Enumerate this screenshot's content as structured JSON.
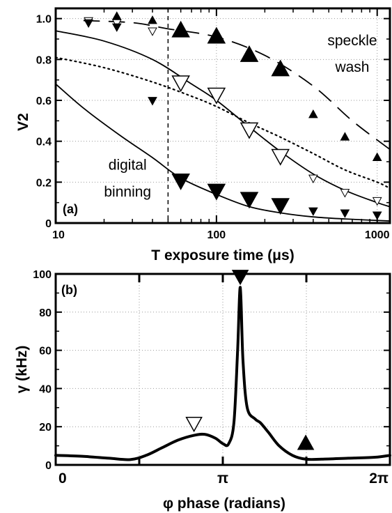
{
  "chart_data": [
    {
      "type": "scatter",
      "panel_label": "(a)",
      "xlabel": "T exposure time (μs)",
      "ylabel": "V2",
      "xscale": "log",
      "xlim": [
        10,
        1200
      ],
      "ylim": [
        0,
        1.05
      ],
      "x_ticks": [
        10,
        100,
        1000
      ],
      "x_tick_labels": [
        "10",
        "100",
        "1000"
      ],
      "y_ticks": [
        0,
        0.2,
        0.4,
        0.6,
        0.8,
        1.0
      ],
      "y_tick_labels": [
        "0",
        "0.2",
        "0.4",
        "0.6",
        "0.8",
        "1.0"
      ],
      "grid": true,
      "vline_x": 50,
      "annotations": [
        {
          "text": "speckle",
          "x": 700,
          "y": 0.87
        },
        {
          "text": "wash",
          "x": 700,
          "y": 0.74
        },
        {
          "text": "digital",
          "x": 28,
          "y": 0.26
        },
        {
          "text": "binning",
          "x": 28,
          "y": 0.13
        }
      ],
      "series": [
        {
          "marker": "up-filled-large",
          "points": [
            [
              60,
              0.94
            ],
            [
              100,
              0.91
            ],
            [
              160,
              0.82
            ],
            [
              250,
              0.75
            ]
          ]
        },
        {
          "marker": "up-filled-small",
          "points": [
            [
              24,
              1.01
            ],
            [
              40,
              0.99
            ],
            [
              400,
              0.53
            ],
            [
              630,
              0.42
            ],
            [
              1000,
              0.32
            ]
          ]
        },
        {
          "marker": "down-open-large",
          "points": [
            [
              60,
              0.69
            ],
            [
              100,
              0.63
            ],
            [
              160,
              0.46
            ],
            [
              250,
              0.33
            ]
          ]
        },
        {
          "marker": "down-open-small",
          "points": [
            [
              16,
              0.99
            ],
            [
              24,
              0.98
            ],
            [
              40,
              0.94
            ],
            [
              400,
              0.22
            ],
            [
              630,
              0.15
            ],
            [
              1000,
              0.11
            ]
          ]
        },
        {
          "marker": "down-filled-large",
          "points": [
            [
              60,
              0.21
            ],
            [
              100,
              0.16
            ],
            [
              160,
              0.12
            ],
            [
              250,
              0.09
            ]
          ]
        },
        {
          "marker": "down-filled-small",
          "points": [
            [
              16,
              0.98
            ],
            [
              24,
              0.96
            ],
            [
              40,
              0.6
            ],
            [
              400,
              0.06
            ],
            [
              630,
              0.05
            ],
            [
              1000,
              0.04
            ]
          ]
        },
        {
          "style": "dashed",
          "points": [
            [
              15,
              0.99
            ],
            [
              30,
              0.98
            ],
            [
              50,
              0.95
            ],
            [
              100,
              0.91
            ],
            [
              200,
              0.82
            ],
            [
              400,
              0.67
            ],
            [
              700,
              0.5
            ],
            [
              1200,
              0.36
            ]
          ]
        },
        {
          "style": "solid",
          "points": [
            [
              10,
              0.94
            ],
            [
              20,
              0.89
            ],
            [
              40,
              0.8
            ],
            [
              70,
              0.68
            ],
            [
              100,
              0.6
            ],
            [
              160,
              0.47
            ],
            [
              250,
              0.35
            ],
            [
              400,
              0.24
            ],
            [
              630,
              0.16
            ],
            [
              1000,
              0.1
            ],
            [
              1200,
              0.08
            ]
          ]
        },
        {
          "style": "dotted",
          "points": [
            [
              10,
              0.81
            ],
            [
              20,
              0.76
            ],
            [
              40,
              0.69
            ],
            [
              70,
              0.62
            ],
            [
              100,
              0.57
            ],
            [
              160,
              0.49
            ],
            [
              250,
              0.42
            ],
            [
              400,
              0.34
            ],
            [
              630,
              0.26
            ],
            [
              1000,
              0.2
            ],
            [
              1200,
              0.17
            ]
          ]
        },
        {
          "style": "solid",
          "points": [
            [
              10,
              0.68
            ],
            [
              15,
              0.56
            ],
            [
              25,
              0.43
            ],
            [
              40,
              0.32
            ],
            [
              60,
              0.22
            ],
            [
              100,
              0.14
            ],
            [
              160,
              0.08
            ],
            [
              250,
              0.05
            ],
            [
              400,
              0.03
            ],
            [
              630,
              0.02
            ],
            [
              1200,
              0.01
            ]
          ]
        }
      ]
    },
    {
      "type": "line",
      "panel_label": "(b)",
      "xlabel": "φ phase (radians)",
      "ylabel": "γ (kHz)",
      "xlim": [
        0,
        6.283
      ],
      "ylim": [
        0,
        100
      ],
      "x_ticks": [
        0,
        3.1416,
        6.2832
      ],
      "x_tick_labels": [
        "0",
        "π",
        "2π"
      ],
      "y_ticks": [
        0,
        20,
        40,
        60,
        80,
        100
      ],
      "y_tick_labels": [
        "0",
        "20",
        "40",
        "60",
        "80",
        "100"
      ],
      "grid": true,
      "series": [
        {
          "points": [
            [
              0,
              5
            ],
            [
              0.5,
              4.5
            ],
            [
              1.0,
              3.5
            ],
            [
              1.4,
              2.8
            ],
            [
              1.7,
              5
            ],
            [
              2.0,
              9
            ],
            [
              2.3,
              13
            ],
            [
              2.6,
              15.5
            ],
            [
              2.8,
              16
            ],
            [
              3.0,
              14
            ],
            [
              3.15,
              11
            ],
            [
              3.25,
              11
            ],
            [
              3.35,
              22
            ],
            [
              3.42,
              60
            ],
            [
              3.47,
              93
            ],
            [
              3.52,
              55
            ],
            [
              3.6,
              30
            ],
            [
              3.75,
              24
            ],
            [
              3.85,
              22
            ],
            [
              4.0,
              17
            ],
            [
              4.2,
              10
            ],
            [
              4.45,
              5
            ],
            [
              4.7,
              3
            ],
            [
              5.0,
              3
            ],
            [
              5.5,
              3.5
            ],
            [
              6.0,
              4
            ],
            [
              6.283,
              5
            ]
          ]
        }
      ],
      "markers": [
        {
          "marker": "down-open",
          "x": 2.6,
          "y": 22
        },
        {
          "marker": "down-filled",
          "x": 3.47,
          "y": 99
        },
        {
          "marker": "up-filled",
          "x": 4.7,
          "y": 11
        }
      ]
    }
  ]
}
